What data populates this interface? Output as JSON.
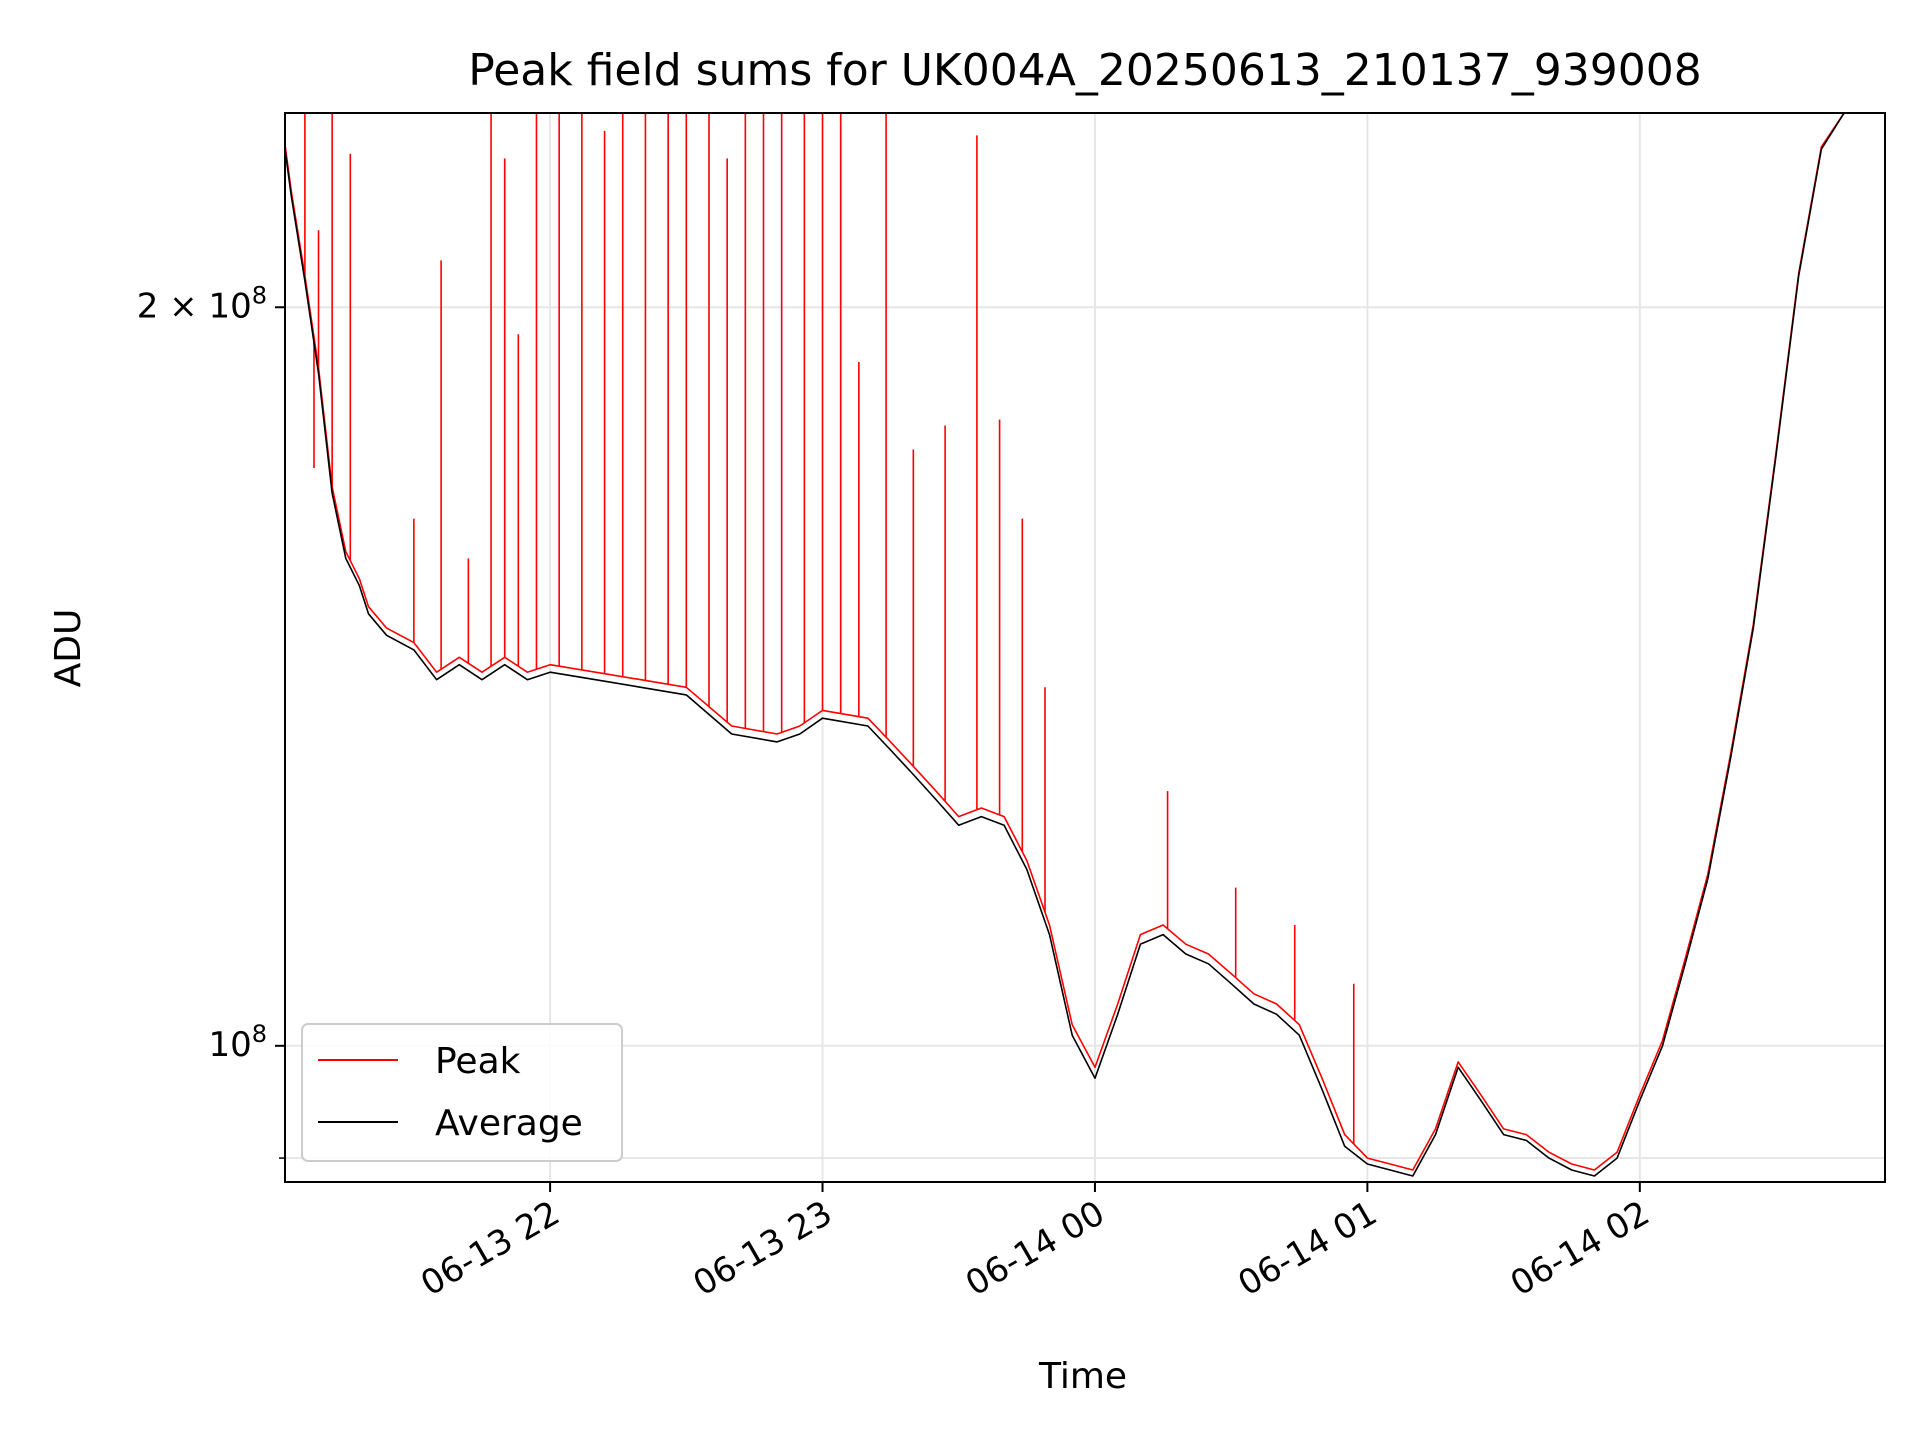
{
  "chart_data": {
    "type": "line",
    "title": "Peak field sums for UK004A_20250613_210137_939008",
    "xlabel": "Time",
    "ylabel": "ADU",
    "yscale": "log",
    "xlim": [
      "2025-06-13 21:01:37",
      "2025-06-14 02:54:00"
    ],
    "ylim": [
      88000000,
      240000000
    ],
    "x_ticks": [
      {
        "t": "2025-06-13 22:00",
        "label": "06-13 22"
      },
      {
        "t": "2025-06-13 23:00",
        "label": "06-13 23"
      },
      {
        "t": "2025-06-14 00:00",
        "label": "06-14 00"
      },
      {
        "t": "2025-06-14 01:00",
        "label": "06-14 01"
      },
      {
        "t": "2025-06-14 02:00",
        "label": "06-14 02"
      }
    ],
    "y_major_ticks": [
      {
        "value": 100000000,
        "label_base": "10",
        "label_exp": "8",
        "label_coef": ""
      },
      {
        "value": 200000000,
        "label_base": "10",
        "label_exp": "8",
        "label_coef": "2 × "
      }
    ],
    "y_minor_ticks": [
      90000000
    ],
    "grid": true,
    "legend_position": "lower-left",
    "colors": {
      "peak": "#ff0000",
      "average": "#000000",
      "grid": "#e6e6e6"
    },
    "series": [
      {
        "name": "Average",
        "color": "#000000",
        "x": [
          "2025-06-13 21:01:37",
          "2025-06-13 21:03",
          "2025-06-13 21:06",
          "2025-06-13 21:09",
          "2025-06-13 21:12",
          "2025-06-13 21:15",
          "2025-06-13 21:18",
          "2025-06-13 21:20",
          "2025-06-13 21:24",
          "2025-06-13 21:30",
          "2025-06-13 21:35",
          "2025-06-13 21:40",
          "2025-06-13 21:45",
          "2025-06-13 21:50",
          "2025-06-13 21:55",
          "2025-06-13 22:00",
          "2025-06-13 22:10",
          "2025-06-13 22:20",
          "2025-06-13 22:30",
          "2025-06-13 22:40",
          "2025-06-13 22:50",
          "2025-06-13 22:55",
          "2025-06-13 23:00",
          "2025-06-13 23:10",
          "2025-06-13 23:15",
          "2025-06-13 23:20",
          "2025-06-13 23:25",
          "2025-06-13 23:30",
          "2025-06-13 23:35",
          "2025-06-13 23:40",
          "2025-06-13 23:45",
          "2025-06-13 23:50",
          "2025-06-13 23:55",
          "2025-06-14 00:00",
          "2025-06-14 00:05",
          "2025-06-14 00:10",
          "2025-06-14 00:15",
          "2025-06-14 00:20",
          "2025-06-14 00:25",
          "2025-06-14 00:30",
          "2025-06-14 00:35",
          "2025-06-14 00:40",
          "2025-06-14 00:45",
          "2025-06-14 00:50",
          "2025-06-14 00:55",
          "2025-06-14 01:00",
          "2025-06-14 01:05",
          "2025-06-14 01:10",
          "2025-06-14 01:15",
          "2025-06-14 01:20",
          "2025-06-14 01:25",
          "2025-06-14 01:30",
          "2025-06-14 01:35",
          "2025-06-14 01:40",
          "2025-06-14 01:45",
          "2025-06-14 01:50",
          "2025-06-14 01:55",
          "2025-06-14 02:00",
          "2025-06-14 02:05",
          "2025-06-14 02:10",
          "2025-06-14 02:15",
          "2025-06-14 02:20",
          "2025-06-14 02:25",
          "2025-06-14 02:30",
          "2025-06-14 02:35",
          "2025-06-14 02:40",
          "2025-06-14 02:45",
          "2025-06-14 02:50",
          "2025-06-14 02:54"
        ],
        "values": [
          232000000,
          222000000,
          205000000,
          188000000,
          168000000,
          158000000,
          154000000,
          150000000,
          147000000,
          145000000,
          141000000,
          143000000,
          141000000,
          143000000,
          141000000,
          142000000,
          141000000,
          140000000,
          139000000,
          134000000,
          133000000,
          134000000,
          136000000,
          135000000,
          132000000,
          129000000,
          126000000,
          123000000,
          124000000,
          123000000,
          118000000,
          111000000,
          101000000,
          97000000,
          103000000,
          110000000,
          111000000,
          109000000,
          108000000,
          106000000,
          104000000,
          103000000,
          101000000,
          96000000,
          91000000,
          89500000,
          89000000,
          88500000,
          92000000,
          98000000,
          95000000,
          92000000,
          91500000,
          90000000,
          89000000,
          88500000,
          90000000,
          95000000,
          100000000,
          108000000,
          117000000,
          131000000,
          148000000,
          174000000,
          206000000,
          232000000,
          240000000,
          240000000,
          240000000
        ]
      },
      {
        "name": "Peak",
        "color": "#ff0000",
        "x": [
          "2025-06-13 21:01:37",
          "2025-06-13 21:03",
          "2025-06-13 21:06",
          "2025-06-13 21:09",
          "2025-06-13 21:12",
          "2025-06-13 21:15",
          "2025-06-13 21:18",
          "2025-06-13 21:20",
          "2025-06-13 21:24",
          "2025-06-13 21:30",
          "2025-06-13 21:35",
          "2025-06-13 21:40",
          "2025-06-13 21:45",
          "2025-06-13 21:50",
          "2025-06-13 21:55",
          "2025-06-13 22:00",
          "2025-06-13 22:10",
          "2025-06-13 22:20",
          "2025-06-13 22:30",
          "2025-06-13 22:40",
          "2025-06-13 22:50",
          "2025-06-13 22:55",
          "2025-06-13 23:00",
          "2025-06-13 23:10",
          "2025-06-13 23:15",
          "2025-06-13 23:20",
          "2025-06-13 23:25",
          "2025-06-13 23:30",
          "2025-06-13 23:35",
          "2025-06-13 23:40",
          "2025-06-13 23:45",
          "2025-06-13 23:50",
          "2025-06-13 23:55",
          "2025-06-14 00:00",
          "2025-06-14 00:05",
          "2025-06-14 00:10",
          "2025-06-14 00:15",
          "2025-06-14 00:20",
          "2025-06-14 00:25",
          "2025-06-14 00:30",
          "2025-06-14 00:35",
          "2025-06-14 00:40",
          "2025-06-14 00:45",
          "2025-06-14 00:50",
          "2025-06-14 00:55",
          "2025-06-14 01:00",
          "2025-06-14 01:05",
          "2025-06-14 01:10",
          "2025-06-14 01:15",
          "2025-06-14 01:20",
          "2025-06-14 01:25",
          "2025-06-14 01:30",
          "2025-06-14 01:35",
          "2025-06-14 01:40",
          "2025-06-14 01:45",
          "2025-06-14 01:50",
          "2025-06-14 01:55",
          "2025-06-14 02:00",
          "2025-06-14 02:05",
          "2025-06-14 02:10",
          "2025-06-14 02:15",
          "2025-06-14 02:20",
          "2025-06-14 02:25",
          "2025-06-14 02:30",
          "2025-06-14 02:35",
          "2025-06-14 02:40",
          "2025-06-14 02:45",
          "2025-06-14 02:50",
          "2025-06-14 02:54"
        ],
        "values": [
          233000000,
          223000000,
          206000000,
          189000000,
          169000000,
          159000000,
          155000000,
          151000000,
          148000000,
          146000000,
          142000000,
          144000000,
          142000000,
          144000000,
          142000000,
          143000000,
          142000000,
          141000000,
          140000000,
          135000000,
          134000000,
          135000000,
          137000000,
          136000000,
          133000000,
          130000000,
          127000000,
          124000000,
          125000000,
          124000000,
          119000000,
          112000000,
          102000000,
          98000000,
          104000000,
          111000000,
          112000000,
          110000000,
          109000000,
          107000000,
          105000000,
          104000000,
          102000000,
          97000000,
          92000000,
          90000000,
          89500000,
          89000000,
          92500000,
          98500000,
          95500000,
          92500000,
          92000000,
          90500000,
          89500000,
          89000000,
          90500000,
          95500000,
          100500000,
          108500000,
          117500000,
          131500000,
          148500000,
          174500000,
          206500000,
          232500000,
          240000000,
          240000000,
          240000000
        ],
        "spikes": [
          {
            "t": "2025-06-13 21:06",
            "v": 240000000
          },
          {
            "t": "2025-06-13 21:08",
            "v": 172000000
          },
          {
            "t": "2025-06-13 21:09",
            "v": 215000000
          },
          {
            "t": "2025-06-13 21:12",
            "v": 240000000
          },
          {
            "t": "2025-06-13 21:16",
            "v": 231000000
          },
          {
            "t": "2025-06-13 21:30",
            "v": 164000000
          },
          {
            "t": "2025-06-13 21:36",
            "v": 209000000
          },
          {
            "t": "2025-06-13 21:42",
            "v": 158000000
          },
          {
            "t": "2025-06-13 21:47",
            "v": 240000000
          },
          {
            "t": "2025-06-13 21:50",
            "v": 230000000
          },
          {
            "t": "2025-06-13 21:53",
            "v": 195000000
          },
          {
            "t": "2025-06-13 21:57",
            "v": 240000000
          },
          {
            "t": "2025-06-13 22:02",
            "v": 240000000
          },
          {
            "t": "2025-06-13 22:07",
            "v": 240000000
          },
          {
            "t": "2025-06-13 22:12",
            "v": 236000000
          },
          {
            "t": "2025-06-13 22:16",
            "v": 240000000
          },
          {
            "t": "2025-06-13 22:21",
            "v": 240000000
          },
          {
            "t": "2025-06-13 22:26",
            "v": 240000000
          },
          {
            "t": "2025-06-13 22:30",
            "v": 240000000
          },
          {
            "t": "2025-06-13 22:35",
            "v": 240000000
          },
          {
            "t": "2025-06-13 22:39",
            "v": 230000000
          },
          {
            "t": "2025-06-13 22:43",
            "v": 240000000
          },
          {
            "t": "2025-06-13 22:47",
            "v": 240000000
          },
          {
            "t": "2025-06-13 22:51",
            "v": 240000000
          },
          {
            "t": "2025-06-13 22:56",
            "v": 240000000
          },
          {
            "t": "2025-06-13 23:00",
            "v": 240000000
          },
          {
            "t": "2025-06-13 23:04",
            "v": 240000000
          },
          {
            "t": "2025-06-13 23:08",
            "v": 190000000
          },
          {
            "t": "2025-06-13 23:14",
            "v": 240000000
          },
          {
            "t": "2025-06-13 23:20",
            "v": 175000000
          },
          {
            "t": "2025-06-13 23:27",
            "v": 179000000
          },
          {
            "t": "2025-06-13 23:34",
            "v": 235000000
          },
          {
            "t": "2025-06-13 23:39",
            "v": 180000000
          },
          {
            "t": "2025-06-13 23:44",
            "v": 164000000
          },
          {
            "t": "2025-06-13 23:49",
            "v": 140000000
          },
          {
            "t": "2025-06-14 00:16",
            "v": 127000000
          },
          {
            "t": "2025-06-14 00:31",
            "v": 116000000
          },
          {
            "t": "2025-06-14 00:44",
            "v": 112000000
          },
          {
            "t": "2025-06-14 00:57",
            "v": 106000000
          }
        ]
      }
    ]
  }
}
